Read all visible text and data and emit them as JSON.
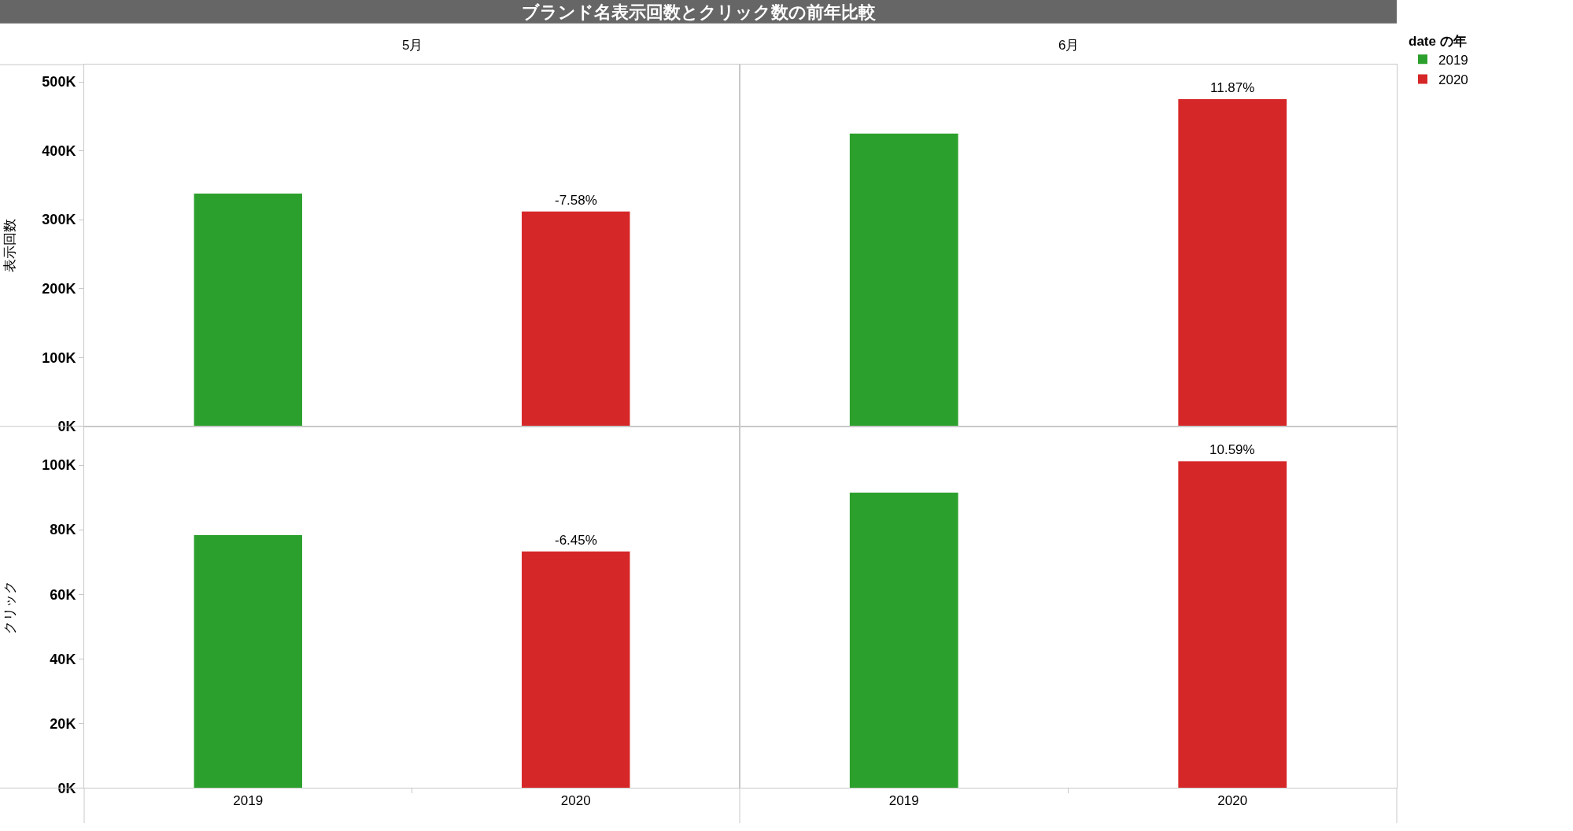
{
  "chart_data": [
    {
      "type": "bar",
      "title": "ブランド名表示回数とクリック数の前年比較",
      "annotations": [
        "5月",
        {
          "text": "-7.58%",
          "x": "2020",
          "y": 312000
        }
      ],
      "ylabel": "表示回数",
      "legend_title": "date の年",
      "legend": "top right",
      "categories": [
        "2019",
        "2020"
      ],
      "series": [
        {
          "name": "2019",
          "color": "#2ca02c",
          "values": [
            338000,
            null
          ]
        },
        {
          "name": "2020",
          "color": "#d62728",
          "values": [
            null,
            312000
          ]
        }
      ],
      "ylim": [
        0,
        525000
      ],
      "yticks": [
        {
          "value": 0,
          "label": "0K"
        },
        {
          "value": 100000,
          "label": "100K"
        },
        {
          "value": 200000,
          "label": "200K"
        },
        {
          "value": 300000,
          "label": "300K"
        },
        {
          "value": 400000,
          "label": "400K"
        },
        {
          "value": 500000,
          "label": "500K"
        }
      ],
      "tick_labels": "y"
    },
    {
      "type": "bar",
      "annotations": [
        "6月",
        {
          "text": "11.87%",
          "x": "2020",
          "y": 475000
        }
      ],
      "categories": [
        "2019",
        "2020"
      ],
      "series": [
        {
          "color": "#2ca02c",
          "values": [
            425000,
            null
          ]
        },
        {
          "color": "#d62728",
          "values": [
            null,
            475000
          ]
        }
      ],
      "ylim": [
        0,
        525000
      ],
      "tick_labels": false
    },
    {
      "type": "bar",
      "ylabel": "クリック",
      "annotations": [
        {
          "text": "-6.45%",
          "x": "2020",
          "y": 73300
        }
      ],
      "categories": [
        "2019",
        "2020"
      ],
      "series": [
        {
          "color": "#2ca02c",
          "values": [
            78300,
            null
          ]
        },
        {
          "color": "#d62728",
          "values": [
            null,
            73300
          ]
        }
      ],
      "ylim": [
        0,
        112000
      ],
      "yticks": [
        {
          "value": 0,
          "label": "0K"
        },
        {
          "value": 20000,
          "label": "20K"
        },
        {
          "value": 40000,
          "label": "40K"
        },
        {
          "value": 60000,
          "label": "60K"
        },
        {
          "value": 80000,
          "label": "80K"
        },
        {
          "value": 100000,
          "label": "100K"
        }
      ]
    },
    {
      "type": "bar",
      "annotations": [
        {
          "text": "10.59%",
          "x": "2020",
          "y": 101200
        }
      ],
      "categories": [
        "2019",
        "2020"
      ],
      "series": [
        {
          "color": "#2ca02c",
          "values": [
            91500,
            null
          ]
        },
        {
          "color": "#d62728",
          "values": [
            null,
            101200
          ]
        }
      ],
      "ylim": [
        0,
        112000
      ],
      "tick_labels": "x"
    }
  ]
}
